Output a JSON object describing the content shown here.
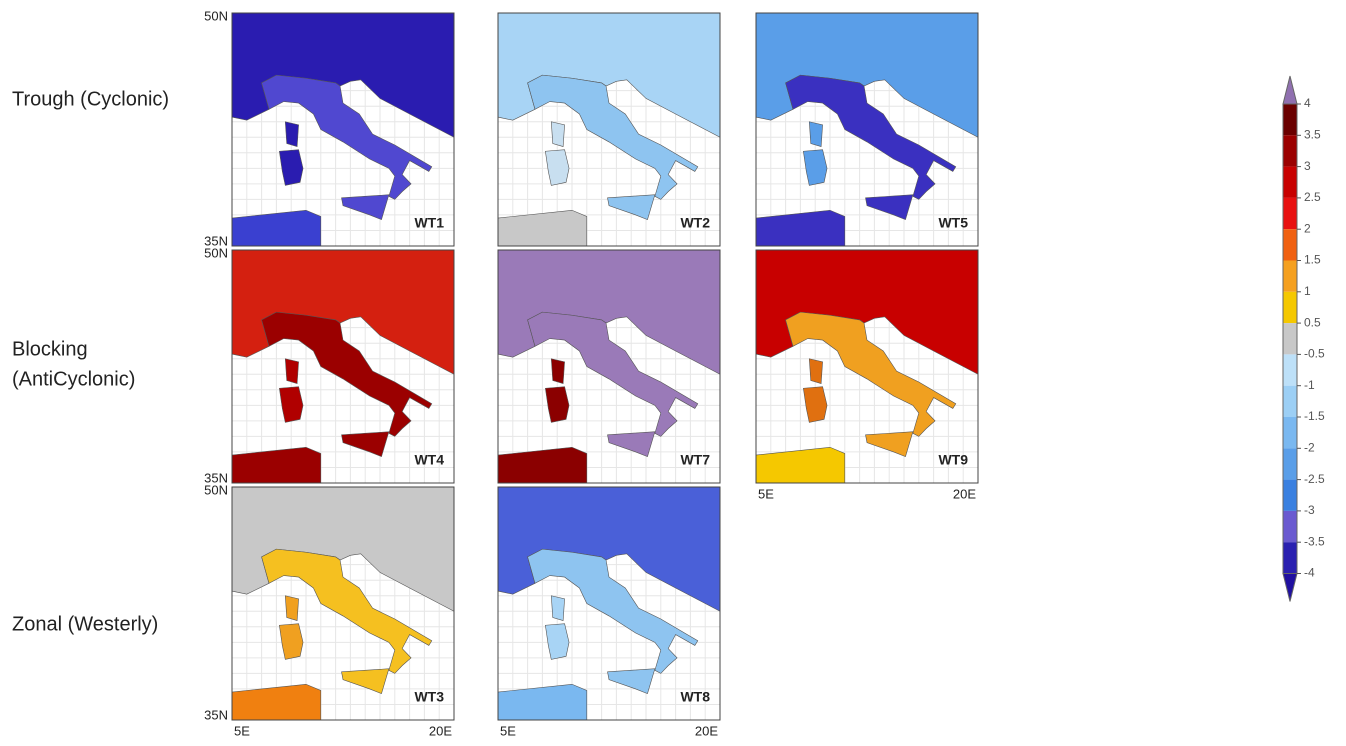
{
  "row_labels": [
    [
      "Trough (Cyclonic)"
    ],
    [
      "Blocking",
      "(AntiCyclonic)"
    ],
    [
      "Zonal (Westerly)"
    ]
  ],
  "lat_labels": [
    "50N",
    "35N"
  ],
  "lon_labels": [
    "5E",
    "20E"
  ],
  "panels": [
    {
      "label": "WT1",
      "row": 0,
      "col": 0,
      "colors": {
        "north": "#2a1cb0",
        "italy": "#5048d0",
        "islands": "#2a1cb0",
        "africa": "#3a40d0"
      }
    },
    {
      "label": "WT2",
      "row": 0,
      "col": 1,
      "colors": {
        "north": "#a8d4f5",
        "italy": "#8ec4f0",
        "islands": "#c8dff0",
        "africa": "#c8c8c8"
      }
    },
    {
      "label": "WT5",
      "row": 0,
      "col": 2,
      "colors": {
        "north": "#5a9ee8",
        "italy": "#3a30c0",
        "islands": "#5a9ee8",
        "africa": "#3a30c0"
      }
    },
    {
      "label": "WT4",
      "row": 1,
      "col": 0,
      "colors": {
        "north": "#d42010",
        "italy": "#9b0000",
        "islands": "#b00000",
        "africa": "#9b0000"
      }
    },
    {
      "label": "WT7",
      "row": 1,
      "col": 1,
      "colors": {
        "north": "#9a7ab8",
        "italy": "#9a7ab8",
        "islands": "#8b0000",
        "africa": "#8b0000"
      }
    },
    {
      "label": "WT9",
      "row": 1,
      "col": 2,
      "colors": {
        "north": "#c80000",
        "italy": "#f0a020",
        "islands": "#e07010",
        "africa": "#f5c800"
      }
    },
    {
      "label": "WT3",
      "row": 2,
      "col": 0,
      "colors": {
        "north": "#c8c8c8",
        "italy": "#f5c020",
        "islands": "#f0a020",
        "africa": "#f08010"
      }
    },
    {
      "label": "WT8",
      "row": 2,
      "col": 1,
      "colors": {
        "north": "#4a60d8",
        "italy": "#8ec4f0",
        "islands": "#a8d4f5",
        "africa": "#7ab8f0"
      }
    }
  ],
  "colorbar": {
    "ticks": [
      4,
      3.5,
      3,
      2.5,
      2,
      1.5,
      1,
      0.5,
      -0.5,
      -1,
      -1.5,
      -2,
      -2.5,
      -3,
      -3.5,
      -4
    ],
    "colors": [
      "#6b0000",
      "#9b0000",
      "#c80000",
      "#e81010",
      "#f06010",
      "#f5a020",
      "#f5c800",
      "#c8c8c8",
      "#bde0f8",
      "#9ccff5",
      "#7ab8f0",
      "#5a9ee8",
      "#3a80e0",
      "#6a5ad0",
      "#2a20b0"
    ],
    "over_color": "#9070b0",
    "under_color": "#2010a0"
  }
}
